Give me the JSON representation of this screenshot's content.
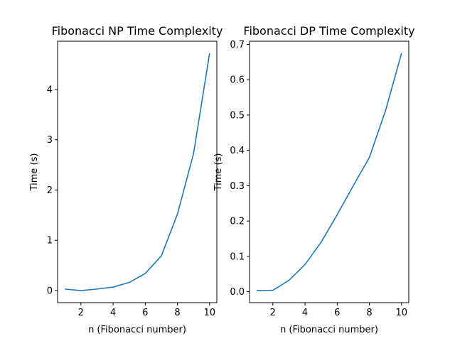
{
  "chart_data": [
    {
      "type": "line",
      "title": "Fibonacci NP Time Complexity",
      "xlabel": "n (Fibonacci number)",
      "ylabel": "Time (s)",
      "xlim": [
        0.55,
        10.45
      ],
      "ylim": [
        -0.24,
        4.96
      ],
      "xticks": [
        2,
        4,
        6,
        8,
        10
      ],
      "xtick_labels": [
        "2",
        "4",
        "6",
        "8",
        "10"
      ],
      "yticks": [
        0,
        1,
        2,
        3,
        4
      ],
      "ytick_labels": [
        "0",
        "1",
        "2",
        "3",
        "4"
      ],
      "grid": false,
      "color": "#1f77b4",
      "series": [
        {
          "x": [
            1,
            2,
            3,
            4,
            5,
            6,
            7,
            8,
            9,
            10
          ],
          "values": [
            0.03,
            0.0,
            0.03,
            0.07,
            0.16,
            0.34,
            0.69,
            1.52,
            2.72,
            4.72
          ]
        }
      ]
    },
    {
      "type": "line",
      "title": "Fibonacci DP Time Complexity",
      "xlabel": "n (Fibonacci number)",
      "ylabel": "Time (s)",
      "xlim": [
        0.55,
        10.45
      ],
      "ylim": [
        -0.031,
        0.709
      ],
      "xticks": [
        2,
        4,
        6,
        8,
        10
      ],
      "xtick_labels": [
        "2",
        "4",
        "6",
        "8",
        "10"
      ],
      "yticks": [
        0.0,
        0.1,
        0.2,
        0.3,
        0.4,
        0.5,
        0.6,
        0.7
      ],
      "ytick_labels": [
        "0.0",
        "0.1",
        "0.2",
        "0.3",
        "0.4",
        "0.5",
        "0.6",
        "0.7"
      ],
      "grid": false,
      "color": "#1f77b4",
      "series": [
        {
          "x": [
            1,
            2,
            3,
            4,
            5,
            6,
            7,
            8,
            9,
            10
          ],
          "values": [
            0.003,
            0.004,
            0.032,
            0.077,
            0.14,
            0.218,
            0.3,
            0.38,
            0.512,
            0.675
          ]
        }
      ]
    }
  ]
}
